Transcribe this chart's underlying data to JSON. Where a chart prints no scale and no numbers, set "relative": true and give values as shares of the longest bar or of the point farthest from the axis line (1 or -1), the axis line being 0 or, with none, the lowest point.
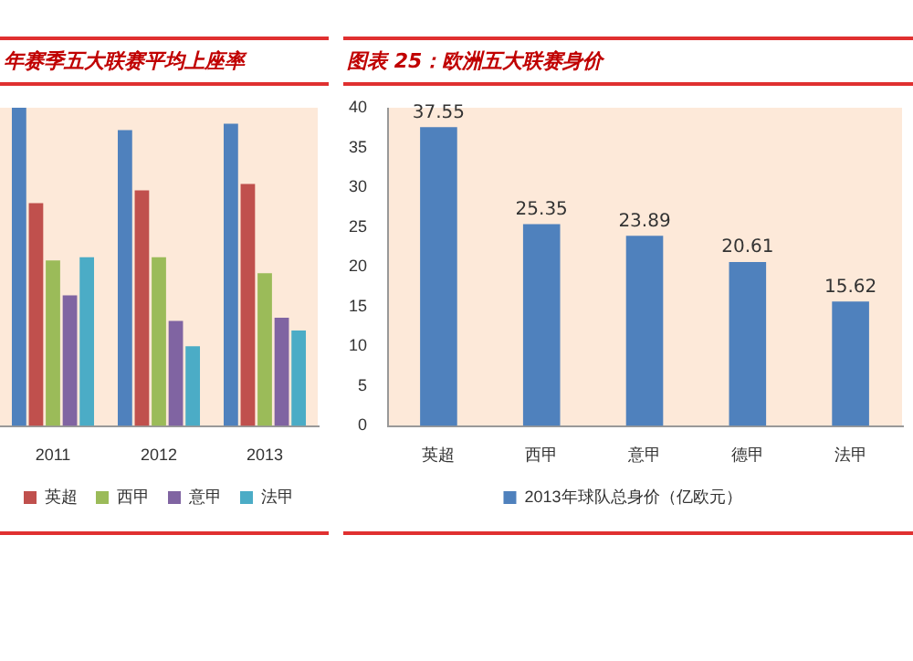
{
  "chart_data": [
    {
      "type": "bar",
      "title": "年赛季五大联赛平均上座率",
      "relative": true,
      "categories": [
        "2011",
        "2012",
        "2013"
      ],
      "legend": "bottom",
      "series": [
        {
          "color": "#4f81bd",
          "values": [
            1,
            0.93,
            0.95
          ]
        },
        {
          "name": "英超",
          "color": "#c0504d",
          "values": [
            0.7,
            0.74,
            0.76
          ]
        },
        {
          "name": "西甲",
          "color": "#9bbb59",
          "values": [
            0.52,
            0.53,
            0.48
          ]
        },
        {
          "name": "意甲",
          "color": "#8064a2",
          "values": [
            0.41,
            0.33,
            0.34
          ]
        },
        {
          "name": "法甲",
          "color": "#4bacc6",
          "values": [
            0.53,
            0.25,
            0.3
          ]
        }
      ]
    },
    {
      "type": "bar",
      "title": "图表 25：欧洲五大联赛身价",
      "categories": [
        "英超",
        "西甲",
        "意甲",
        "德甲",
        "法甲"
      ],
      "legend": "bottom",
      "ylim": [
        0,
        40
      ],
      "yticks": [
        0,
        5,
        10,
        15,
        20,
        25,
        30,
        35,
        40
      ],
      "data_labels": true,
      "series": [
        {
          "name": "2013年球队总身价（亿欧元）",
          "color": "#4f81bd",
          "values": [
            37.55,
            25.35,
            23.89,
            20.61,
            15.62
          ]
        }
      ]
    }
  ]
}
